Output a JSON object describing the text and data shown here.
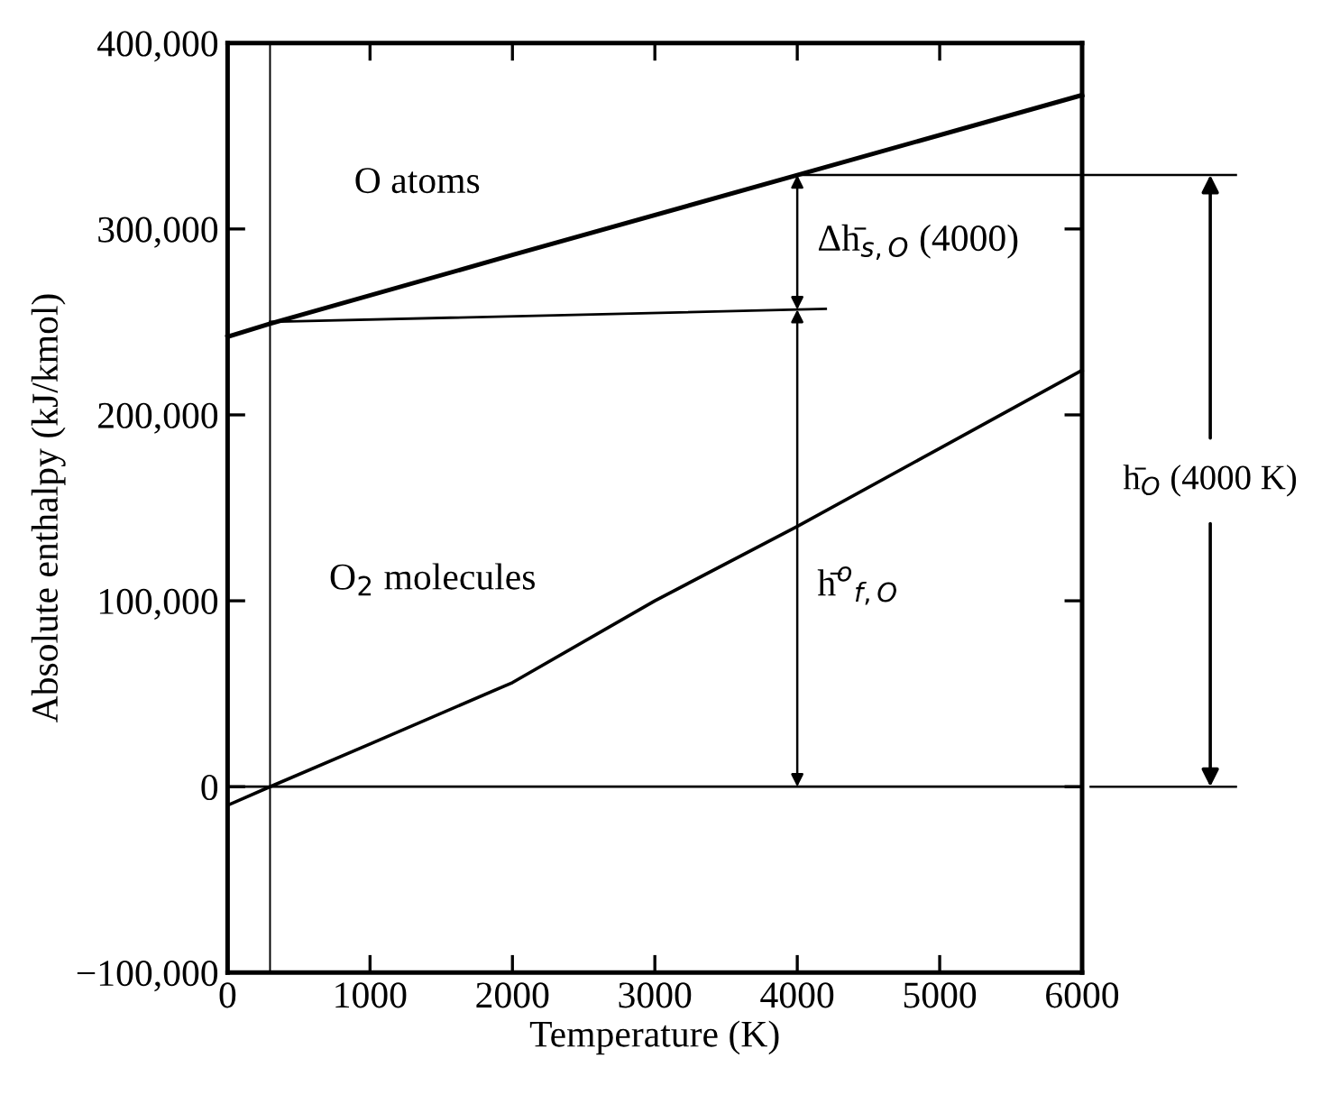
{
  "chart_data": {
    "type": "line",
    "xlabel": "Temperature (K)",
    "ylabel": "Absolute enthalpy (kJ/kmol)",
    "xlim": [
      0,
      6000
    ],
    "xticks": [
      0,
      1000,
      2000,
      3000,
      4000,
      5000,
      6000
    ],
    "ylim": [
      -100000,
      400000
    ],
    "yticks": [
      {
        "value": -100000,
        "label": "−100,000"
      },
      {
        "value": 0,
        "label": "0"
      },
      {
        "value": 100000,
        "label": "100,000"
      },
      {
        "value": 200000,
        "label": "200,000"
      },
      {
        "value": 300000,
        "label": "300,000"
      },
      {
        "value": 400000,
        "label": "400,000"
      }
    ],
    "series": [
      {
        "name": "O atoms",
        "color": "#000000",
        "x": [
          0,
          298,
          2000,
          4000,
          6000
        ],
        "values": [
          242000,
          249000,
          286000,
          329000,
          372000
        ]
      },
      {
        "name": "O$_{2}$ molecules",
        "color": "#000000",
        "x": [
          0,
          298,
          1000,
          2000,
          3000,
          4000,
          5000,
          6000
        ],
        "values": [
          -10000,
          0,
          23000,
          56000,
          100000,
          140000,
          182000,
          224000
        ]
      },
      {
        "color": "#000000",
        "x": [
          298,
          4200
        ],
        "values": [
          250000,
          257000
        ]
      }
    ],
    "ref_lines": [
      {
        "axis": "x",
        "value": 298,
        "color": "#000000"
      },
      {
        "axis": "y",
        "value": 0,
        "color": "#000000"
      }
    ],
    "annotations": [
      {
        "text": "Δh̄$_{s,O}$ (4000)",
        "x": 4000,
        "y": 329000
      },
      "h̄$^{o}$$_{f,O}$",
      "h̄$_{O}$ (4000 K)"
    ],
    "marker": "none",
    "line_style": "solid",
    "legend": false,
    "grid": false
  }
}
